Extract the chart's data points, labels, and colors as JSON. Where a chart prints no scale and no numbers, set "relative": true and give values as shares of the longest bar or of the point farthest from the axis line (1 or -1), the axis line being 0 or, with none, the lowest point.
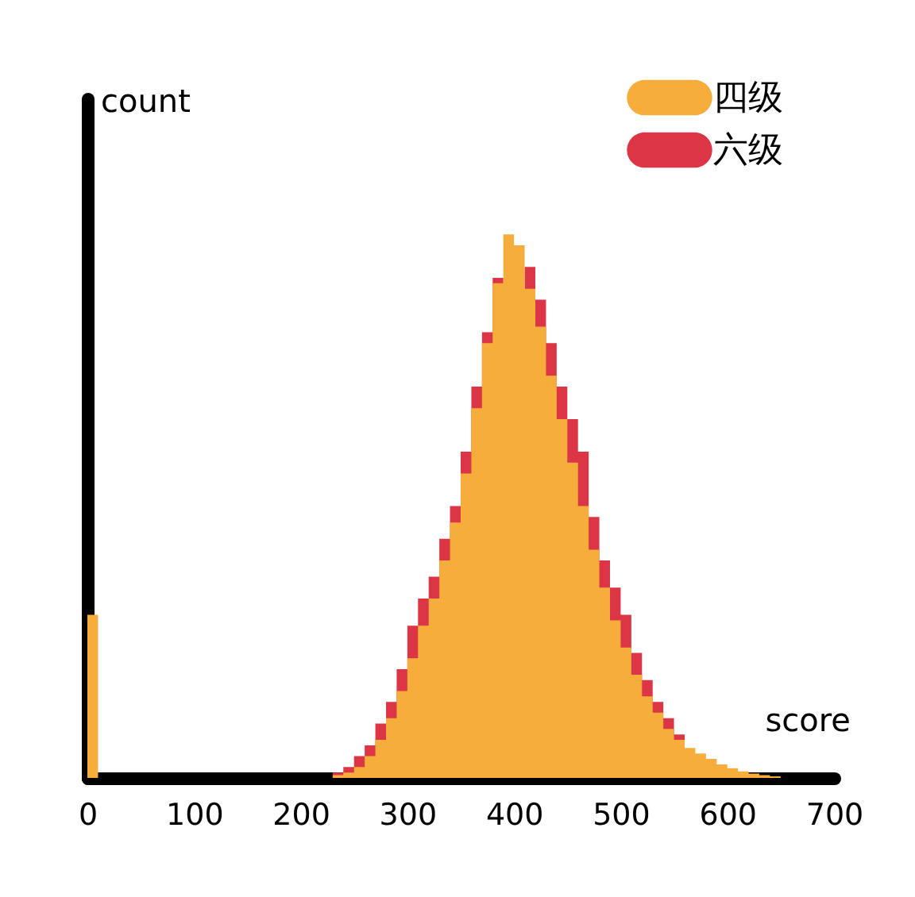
{
  "chart_data": {
    "type": "area",
    "relative": true,
    "xlabel": "score",
    "ylabel": "count",
    "x": [
      0,
      10,
      20,
      30,
      40,
      50,
      60,
      70,
      80,
      90,
      100,
      110,
      120,
      130,
      140,
      150,
      160,
      170,
      180,
      190,
      200,
      210,
      220,
      230,
      240,
      250,
      260,
      270,
      280,
      290,
      300,
      310,
      320,
      330,
      340,
      350,
      360,
      370,
      380,
      390,
      400,
      410,
      420,
      430,
      440,
      450,
      460,
      470,
      480,
      490,
      500,
      510,
      520,
      530,
      540,
      550,
      560,
      570,
      580,
      590,
      600,
      610,
      620,
      630,
      640,
      650,
      660,
      670,
      680,
      690
    ],
    "series": [
      {
        "name": "四级",
        "color": "#f6ad3c",
        "values": [
          0.3,
          0,
          0,
          0,
          0,
          0,
          0,
          0,
          0,
          0,
          0,
          0,
          0,
          0,
          0,
          0,
          0,
          0,
          0,
          0,
          0,
          0,
          0,
          0.005,
          0.01,
          0.02,
          0.04,
          0.07,
          0.11,
          0.16,
          0.22,
          0.28,
          0.33,
          0.4,
          0.47,
          0.56,
          0.68,
          0.8,
          0.91,
          1.0,
          0.98,
          0.9,
          0.83,
          0.74,
          0.66,
          0.58,
          0.5,
          0.42,
          0.35,
          0.29,
          0.24,
          0.19,
          0.15,
          0.12,
          0.09,
          0.07,
          0.055,
          0.045,
          0.035,
          0.025,
          0.018,
          0.012,
          0.008,
          0.005,
          0.003,
          0,
          0,
          0,
          0,
          0
        ]
      },
      {
        "name": "六级",
        "color": "#dc3545",
        "values": [
          0,
          0,
          0,
          0,
          0,
          0,
          0,
          0,
          0,
          0,
          0,
          0,
          0,
          0,
          0,
          0,
          0,
          0,
          0,
          0,
          0,
          0,
          0,
          0.01,
          0.02,
          0.04,
          0.06,
          0.1,
          0.14,
          0.2,
          0.28,
          0.33,
          0.37,
          0.44,
          0.5,
          0.6,
          0.72,
          0.82,
          0.92,
          0.98,
          null,
          0.94,
          0.88,
          0.8,
          0.72,
          0.66,
          0.6,
          0.48,
          0.4,
          0.35,
          0.3,
          0.23,
          0.18,
          0.14,
          0.11,
          0.08,
          0.06,
          null,
          null,
          null,
          null,
          null,
          null,
          null,
          null,
          null,
          null,
          null,
          null,
          null
        ]
      }
    ],
    "xlim": [
      0,
      700
    ],
    "xticks": [
      0,
      100,
      200,
      300,
      400,
      500,
      600,
      700
    ],
    "tick_labels": "x",
    "grid": false,
    "legend": "top right"
  }
}
